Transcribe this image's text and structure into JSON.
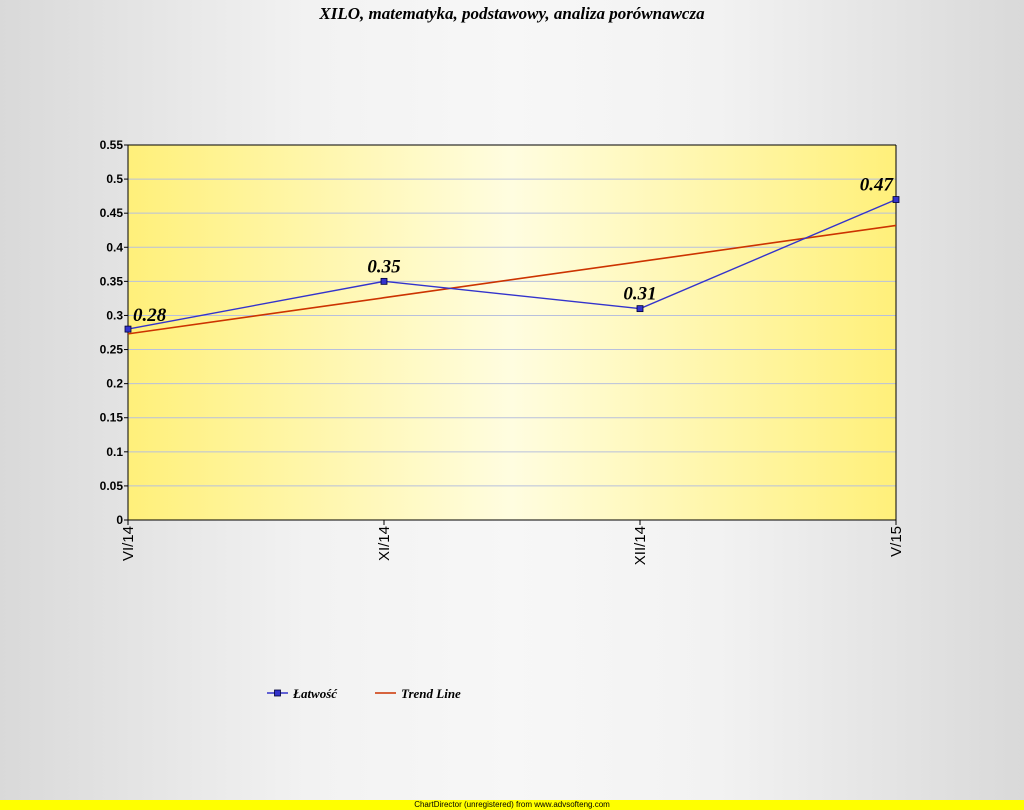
{
  "chart_data": {
    "type": "line",
    "title": "XILO, matematyka, podstawowy, analiza porównawcza",
    "categories": [
      "VI/14",
      "XI/14",
      "XII/14",
      "V/15"
    ],
    "series": [
      {
        "name": "Łatwość",
        "values": [
          0.28,
          0.35,
          0.31,
          0.47
        ],
        "data_labels": [
          "0.28",
          "0.35",
          "0.31",
          "0.47"
        ],
        "color": "#3333cc",
        "marker": "square"
      },
      {
        "name": "Trend Line",
        "values": [
          0.273,
          0.326,
          0.379,
          0.432
        ],
        "color": "#cc3300"
      }
    ],
    "ylim": [
      0,
      0.55
    ],
    "yticks": [
      "0",
      "0.05",
      "0.1",
      "0.15",
      "0.2",
      "0.25",
      "0.3",
      "0.35",
      "0.4",
      "0.45",
      "0.5",
      "0.55"
    ],
    "ytick_values": [
      0,
      0.05,
      0.1,
      0.15,
      0.2,
      0.25,
      0.3,
      0.35,
      0.4,
      0.45,
      0.5,
      0.55
    ],
    "grid": true,
    "legend_position": "bottom-left",
    "plot_background": "#fff8a0"
  },
  "footer": {
    "text": "ChartDirector (unregistered) from www.advsofteng.com"
  }
}
